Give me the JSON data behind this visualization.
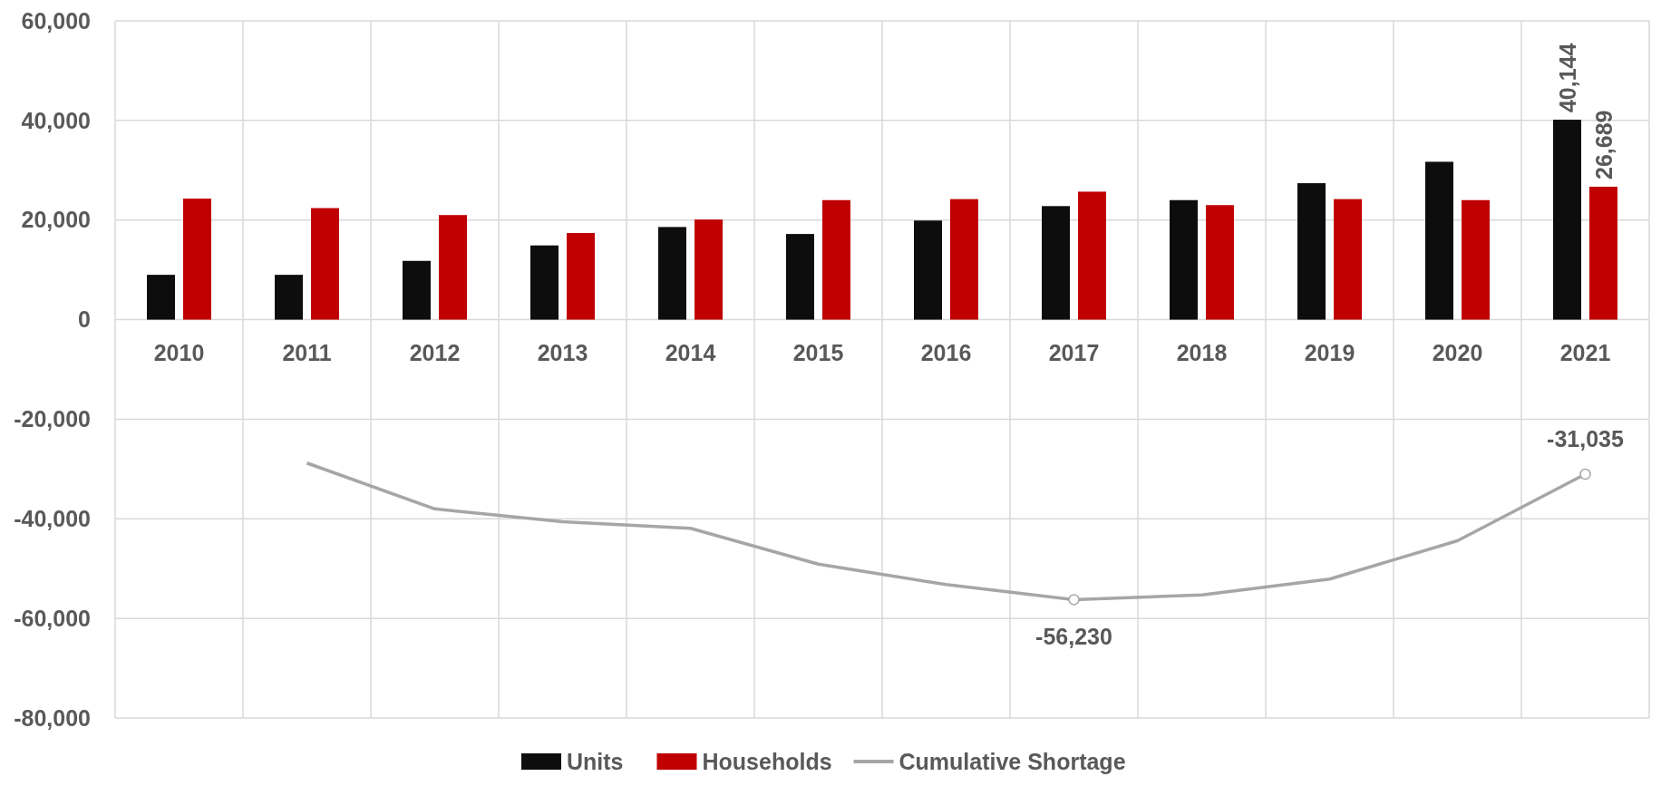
{
  "chart_data": {
    "type": "bar",
    "categories": [
      "2010",
      "2011",
      "2012",
      "2013",
      "2014",
      "2015",
      "2016",
      "2017",
      "2018",
      "2019",
      "2020",
      "2021"
    ],
    "series": [
      {
        "name": "Units",
        "color": "#0d0d0d",
        "values": [
          9000,
          9000,
          11800,
          14900,
          18600,
          17200,
          19900,
          22800,
          24000,
          27400,
          31700,
          40144
        ],
        "value_labels": [
          null,
          null,
          null,
          null,
          null,
          null,
          null,
          null,
          null,
          null,
          null,
          "40,144"
        ]
      },
      {
        "name": "Households",
        "color": "#c00000",
        "values": [
          24300,
          22400,
          21000,
          17400,
          20100,
          24000,
          24200,
          25700,
          23000,
          24200,
          24000,
          26689
        ],
        "value_labels": [
          null,
          null,
          null,
          null,
          null,
          null,
          null,
          null,
          null,
          null,
          null,
          "26,689"
        ]
      },
      {
        "name": "Cumulative Shortage",
        "type": "line",
        "color": "#a6a6a6",
        "values": [
          null,
          -28800,
          -38000,
          -40600,
          -41900,
          -49100,
          -53200,
          -56230,
          -55300,
          -52100,
          -44400,
          -31035
        ],
        "value_labels": [
          null,
          null,
          null,
          null,
          null,
          null,
          null,
          "-56,230",
          null,
          null,
          null,
          "-31,035"
        ]
      }
    ],
    "ylim": [
      -80000,
      60000
    ],
    "yticks": [
      {
        "value": -80000,
        "label": "-80,000"
      },
      {
        "value": -60000,
        "label": "-60,000"
      },
      {
        "value": -40000,
        "label": "-40,000"
      },
      {
        "value": -20000,
        "label": "-20,000"
      },
      {
        "value": 0,
        "label": "0"
      },
      {
        "value": 20000,
        "label": "20,000"
      },
      {
        "value": 40000,
        "label": "40,000"
      },
      {
        "value": 60000,
        "label": "60,000"
      }
    ],
    "grid": true,
    "legend": "bottom"
  }
}
